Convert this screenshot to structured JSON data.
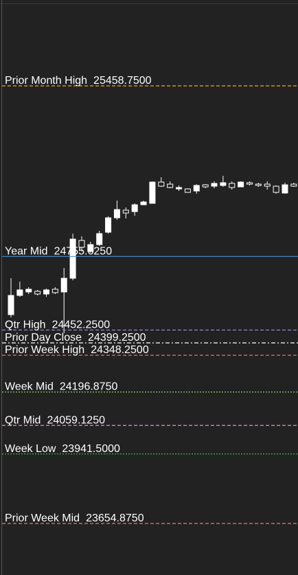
{
  "chart_data": {
    "type": "candlestick",
    "ylim": [
      23442.5,
      25812.75
    ],
    "up_color": "#ffffff",
    "down_color": "#222222",
    "outline_color": "#ffffff",
    "candles": {
      "open": [
        24515.75,
        24595.0,
        24609.25,
        24612.0,
        24600.75,
        24620.5,
        24609.25,
        24665.75,
        24821.5,
        24776.25,
        24804.5,
        24855.5,
        24915.0,
        24946.25,
        24940.5,
        24968.75,
        24974.5,
        25062.25,
        25053.75,
        25034.0,
        25034.0,
        25025.5,
        25051.0,
        25045.25,
        25048.25,
        25056.75,
        25042.5,
        25059.5,
        25053.75,
        25053.75,
        25045.25,
        25017.0,
        25053.75
      ],
      "high": [
        24665.75,
        24651.75,
        24629.0,
        24617.75,
        24623.25,
        24629.0,
        24708.25,
        24849.75,
        24838.5,
        24816.0,
        24861.25,
        24920.75,
        24985.75,
        24957.5,
        24974.5,
        24985.75,
        25065.25,
        25082.0,
        25065.25,
        25048.25,
        25036.75,
        25053.75,
        25053.75,
        25065.25,
        25087.75,
        25065.25,
        25065.25,
        25065.25,
        25059.5,
        25065.25,
        25048.25,
        25059.5,
        25059.5
      ],
      "low": [
        24504.5,
        24589.25,
        24600.75,
        24595.0,
        24589.25,
        24600.75,
        24439.25,
        24657.25,
        24776.25,
        24770.5,
        24798.75,
        24849.75,
        24906.5,
        24912.25,
        24923.5,
        24968.75,
        24974.5,
        25042.5,
        25036.75,
        25025.5,
        25019.75,
        25014.25,
        25036.75,
        25036.75,
        25042.5,
        25031.25,
        25042.5,
        25048.25,
        25042.5,
        25031.25,
        25014.25,
        25014.25,
        25042.5
      ],
      "close": [
        24595.0,
        24617.75,
        24620.5,
        24600.75,
        24617.75,
        24606.25,
        24665.75,
        24827.25,
        24793.25,
        24804.5,
        24849.75,
        24915.0,
        24949.0,
        24934.75,
        24968.75,
        24980.25,
        25062.25,
        25045.25,
        25039.75,
        25039.75,
        25019.75,
        25048.25,
        25042.5,
        25056.75,
        25059.5,
        25039.75,
        25062.25,
        25053.75,
        25048.25,
        25045.25,
        25019.75,
        25051.0,
        25045.25
      ]
    },
    "levels": [
      {
        "name": "Prior Month High",
        "value": 25458.75,
        "value_label": "25458.7500",
        "color": "#f5a623",
        "style": "dashed"
      },
      {
        "name": "Year Mid",
        "value": 24755.625,
        "value_label": "24755.6250",
        "color": "#4a8fd4",
        "style": "solid"
      },
      {
        "name": "Qtr High",
        "value": 24452.25,
        "value_label": "24452.2500",
        "color": "#a98be0",
        "style": "dashed"
      },
      {
        "name": "Prior Day Close",
        "value": 24399.25,
        "value_label": "24399.2500",
        "color": "#ffffff",
        "style": "dashdot"
      },
      {
        "name": "Prior Week High",
        "value": 24348.25,
        "value_label": "24348.2500",
        "color": "#f07060",
        "style": "dashed"
      },
      {
        "name": "Week Mid",
        "value": 24196.875,
        "value_label": "24196.8750",
        "color": "#8cc860",
        "style": "dotted"
      },
      {
        "name": "Qtr Mid",
        "value": 24059.125,
        "value_label": "24059.1250",
        "color": "#e08ee0",
        "style": "dashed"
      },
      {
        "name": "Week Low",
        "value": 23941.5,
        "value_label": "23941.5000",
        "color": "#3cc43c",
        "style": "dotted"
      },
      {
        "name": "Prior Week Mid",
        "value": 23654.875,
        "value_label": "23654.8750",
        "color": "#f07a6a",
        "style": "dashed"
      }
    ]
  }
}
